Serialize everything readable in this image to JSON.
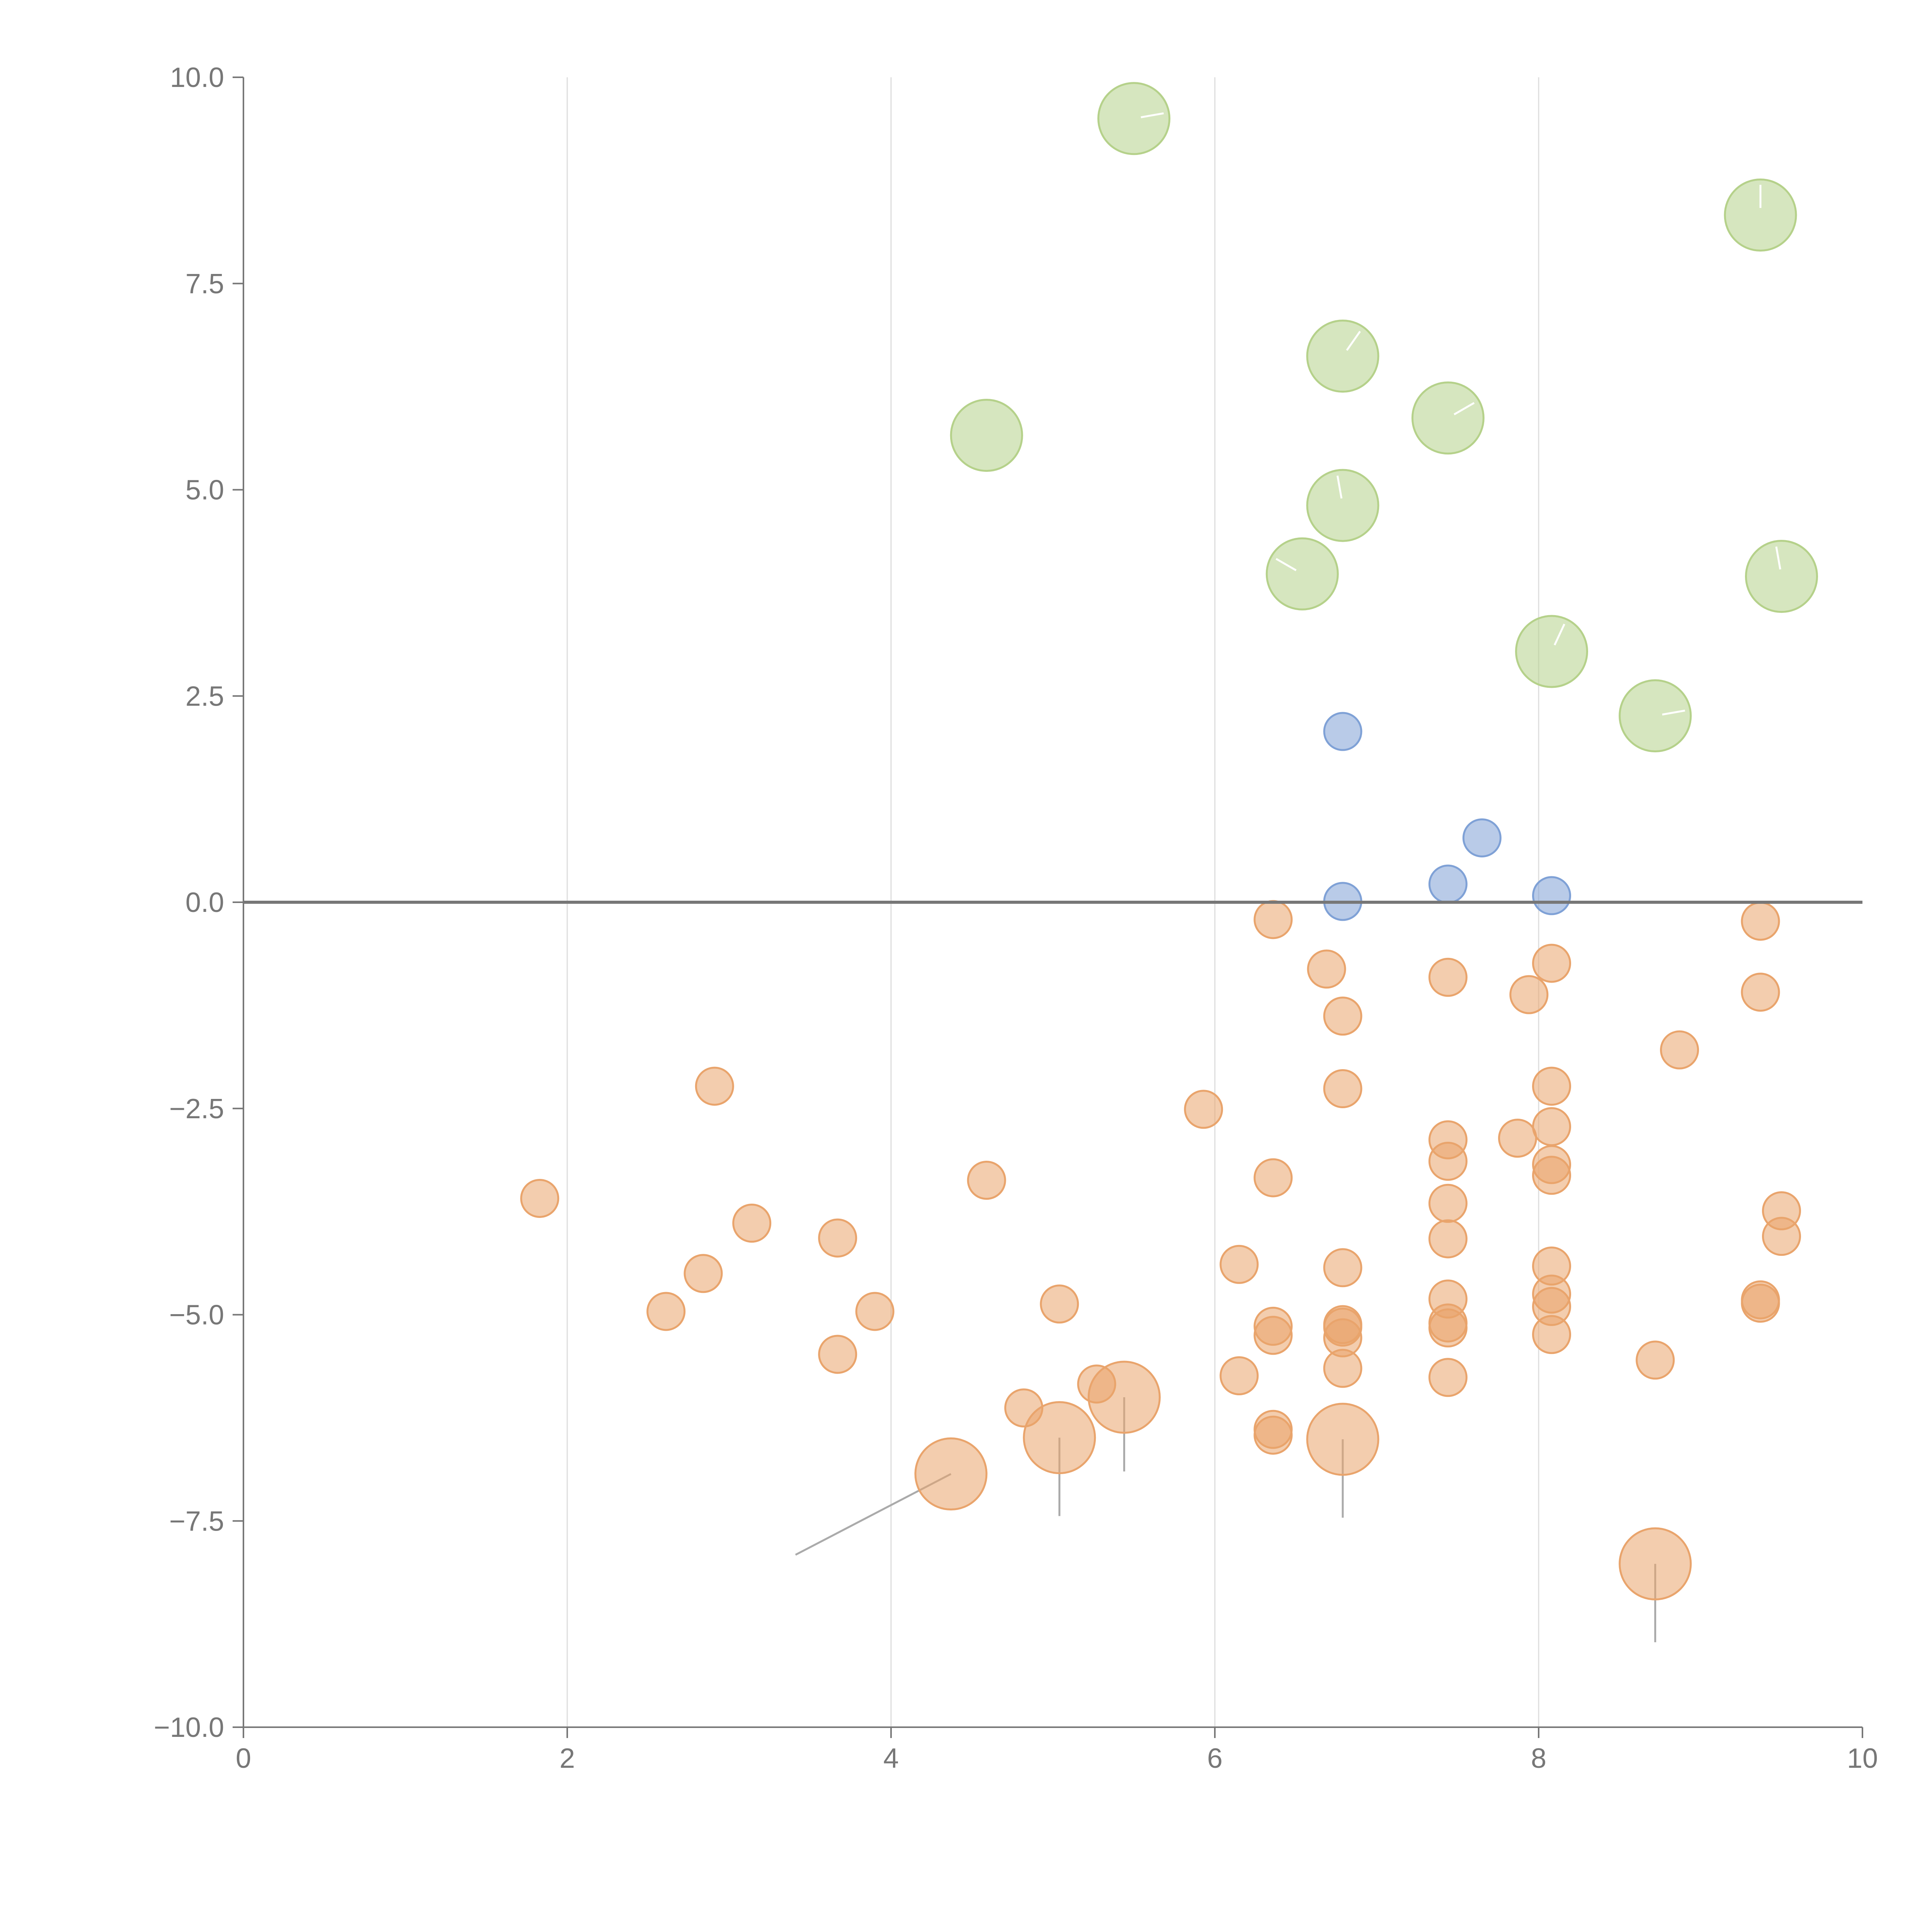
{
  "colors": {
    "orange": "#e9a46c",
    "blue": "#7fa1d6",
    "green": "#b5d18a",
    "label": "#777777",
    "grid": "#dddddd"
  },
  "chart_data": {
    "type": "scatter",
    "title": "",
    "xlabel": "",
    "ylabel": "",
    "xlim": [
      0,
      10
    ],
    "ylim": [
      -10,
      10
    ],
    "grid": "vertical",
    "x_ticks": [
      {
        "value": 0,
        "label": "0"
      },
      {
        "value": 2,
        "label": "2"
      },
      {
        "value": 4,
        "label": "4"
      },
      {
        "value": 6,
        "label": "6"
      },
      {
        "value": 8,
        "label": "8"
      },
      {
        "value": 10,
        "label": "10"
      }
    ],
    "y_ticks": [
      {
        "value": 10,
        "label": "10.0"
      },
      {
        "value": 7.5,
        "label": "7.5"
      },
      {
        "value": 5,
        "label": "5.0"
      },
      {
        "value": 2.5,
        "label": "2.5"
      },
      {
        "value": 0,
        "label": "0.0"
      },
      {
        "value": -2.5,
        "label": "−2.5"
      },
      {
        "value": -5,
        "label": "−5.0"
      },
      {
        "value": -7.5,
        "label": "−7.5"
      },
      {
        "value": -10,
        "label": "−10.0"
      }
    ],
    "series": [
      {
        "name": "green",
        "color": "#b5d18a",
        "size": "large",
        "points": [
          {
            "x": 5.5,
            "y": 9.5,
            "dir": 80
          },
          {
            "x": 9.37,
            "y": 8.33,
            "dir": 0
          },
          {
            "x": 6.79,
            "y": 6.62,
            "dir": 35
          },
          {
            "x": 7.44,
            "y": 5.87,
            "dir": 60
          },
          {
            "x": 4.59,
            "y": 5.66
          },
          {
            "x": 6.79,
            "y": 4.81,
            "dir": -10
          },
          {
            "x": 6.54,
            "y": 3.98,
            "dir": -60
          },
          {
            "x": 9.5,
            "y": 3.95,
            "dir": -10
          },
          {
            "x": 8.08,
            "y": 3.04,
            "dir": 25
          },
          {
            "x": 8.72,
            "y": 2.26,
            "dir": 80
          }
        ]
      },
      {
        "name": "blue",
        "color": "#7fa1d6",
        "size": "small",
        "points": [
          {
            "x": 6.79,
            "y": 2.07
          },
          {
            "x": 7.65,
            "y": 0.78
          },
          {
            "x": 7.44,
            "y": 0.22
          },
          {
            "x": 8.08,
            "y": 0.08
          },
          {
            "x": 6.79,
            "y": 0.01
          }
        ]
      },
      {
        "name": "orange",
        "color": "#e9a46c",
        "size": "small",
        "points": [
          {
            "x": 6.36,
            "y": -0.21
          },
          {
            "x": 9.37,
            "y": -0.23
          },
          {
            "x": 8.08,
            "y": -0.74
          },
          {
            "x": 6.69,
            "y": -0.81
          },
          {
            "x": 7.44,
            "y": -0.91
          },
          {
            "x": 7.94,
            "y": -1.12
          },
          {
            "x": 9.37,
            "y": -1.09
          },
          {
            "x": 6.79,
            "y": -1.38
          },
          {
            "x": 8.87,
            "y": -1.79
          },
          {
            "x": 2.91,
            "y": -2.23
          },
          {
            "x": 8.08,
            "y": -2.23
          },
          {
            "x": 6.79,
            "y": -2.26
          },
          {
            "x": 5.93,
            "y": -2.51
          },
          {
            "x": 8.08,
            "y": -2.72
          },
          {
            "x": 7.44,
            "y": -2.88
          },
          {
            "x": 7.87,
            "y": -2.86
          },
          {
            "x": 7.44,
            "y": -3.14
          },
          {
            "x": 8.08,
            "y": -3.18
          },
          {
            "x": 8.08,
            "y": -3.31
          },
          {
            "x": 6.36,
            "y": -3.34
          },
          {
            "x": 4.59,
            "y": -3.37
          },
          {
            "x": 1.83,
            "y": -3.59
          },
          {
            "x": 7.44,
            "y": -3.65
          },
          {
            "x": 9.5,
            "y": -3.74
          },
          {
            "x": 3.14,
            "y": -3.89
          },
          {
            "x": 3.67,
            "y": -4.07
          },
          {
            "x": 7.44,
            "y": -4.08
          },
          {
            "x": 9.5,
            "y": -4.05
          },
          {
            "x": 6.15,
            "y": -4.39
          },
          {
            "x": 8.08,
            "y": -4.41
          },
          {
            "x": 6.79,
            "y": -4.43
          },
          {
            "x": 2.84,
            "y": -4.5
          },
          {
            "x": 8.08,
            "y": -4.75
          },
          {
            "x": 7.44,
            "y": -4.81
          },
          {
            "x": 9.37,
            "y": -4.82
          },
          {
            "x": 9.37,
            "y": -4.86
          },
          {
            "x": 5.04,
            "y": -4.87
          },
          {
            "x": 8.08,
            "y": -4.9
          },
          {
            "x": 2.61,
            "y": -4.96
          },
          {
            "x": 3.9,
            "y": -4.96
          },
          {
            "x": 6.79,
            "y": -5.12
          },
          {
            "x": 6.79,
            "y": -5.15
          },
          {
            "x": 7.44,
            "y": -5.1
          },
          {
            "x": 7.44,
            "y": -5.16
          },
          {
            "x": 6.36,
            "y": -5.14
          },
          {
            "x": 6.36,
            "y": -5.25
          },
          {
            "x": 6.79,
            "y": -5.28
          },
          {
            "x": 8.08,
            "y": -5.24
          },
          {
            "x": 3.67,
            "y": -5.48
          },
          {
            "x": 8.72,
            "y": -5.55
          },
          {
            "x": 6.79,
            "y": -5.65
          },
          {
            "x": 6.15,
            "y": -5.74
          },
          {
            "x": 7.44,
            "y": -5.76
          },
          {
            "x": 5.27,
            "y": -5.84
          },
          {
            "x": 4.82,
            "y": -6.13
          },
          {
            "x": 6.36,
            "y": -6.39
          },
          {
            "x": 6.36,
            "y": -6.46
          }
        ]
      },
      {
        "name": "orange-highlight",
        "color": "#e9a46c",
        "size": "large",
        "points": [
          {
            "x": 5.44,
            "y": -6.0,
            "leader": [
              0,
              -0.9
            ]
          },
          {
            "x": 5.04,
            "y": -6.49,
            "leader": [
              0,
              -0.95
            ]
          },
          {
            "x": 6.79,
            "y": -6.51,
            "leader": [
              0,
              -0.95
            ]
          },
          {
            "x": 4.37,
            "y": -6.93,
            "leader": [
              -0.96,
              -0.98
            ]
          },
          {
            "x": 8.72,
            "y": -8.02,
            "leader": [
              0,
              -0.95
            ]
          }
        ]
      }
    ]
  }
}
